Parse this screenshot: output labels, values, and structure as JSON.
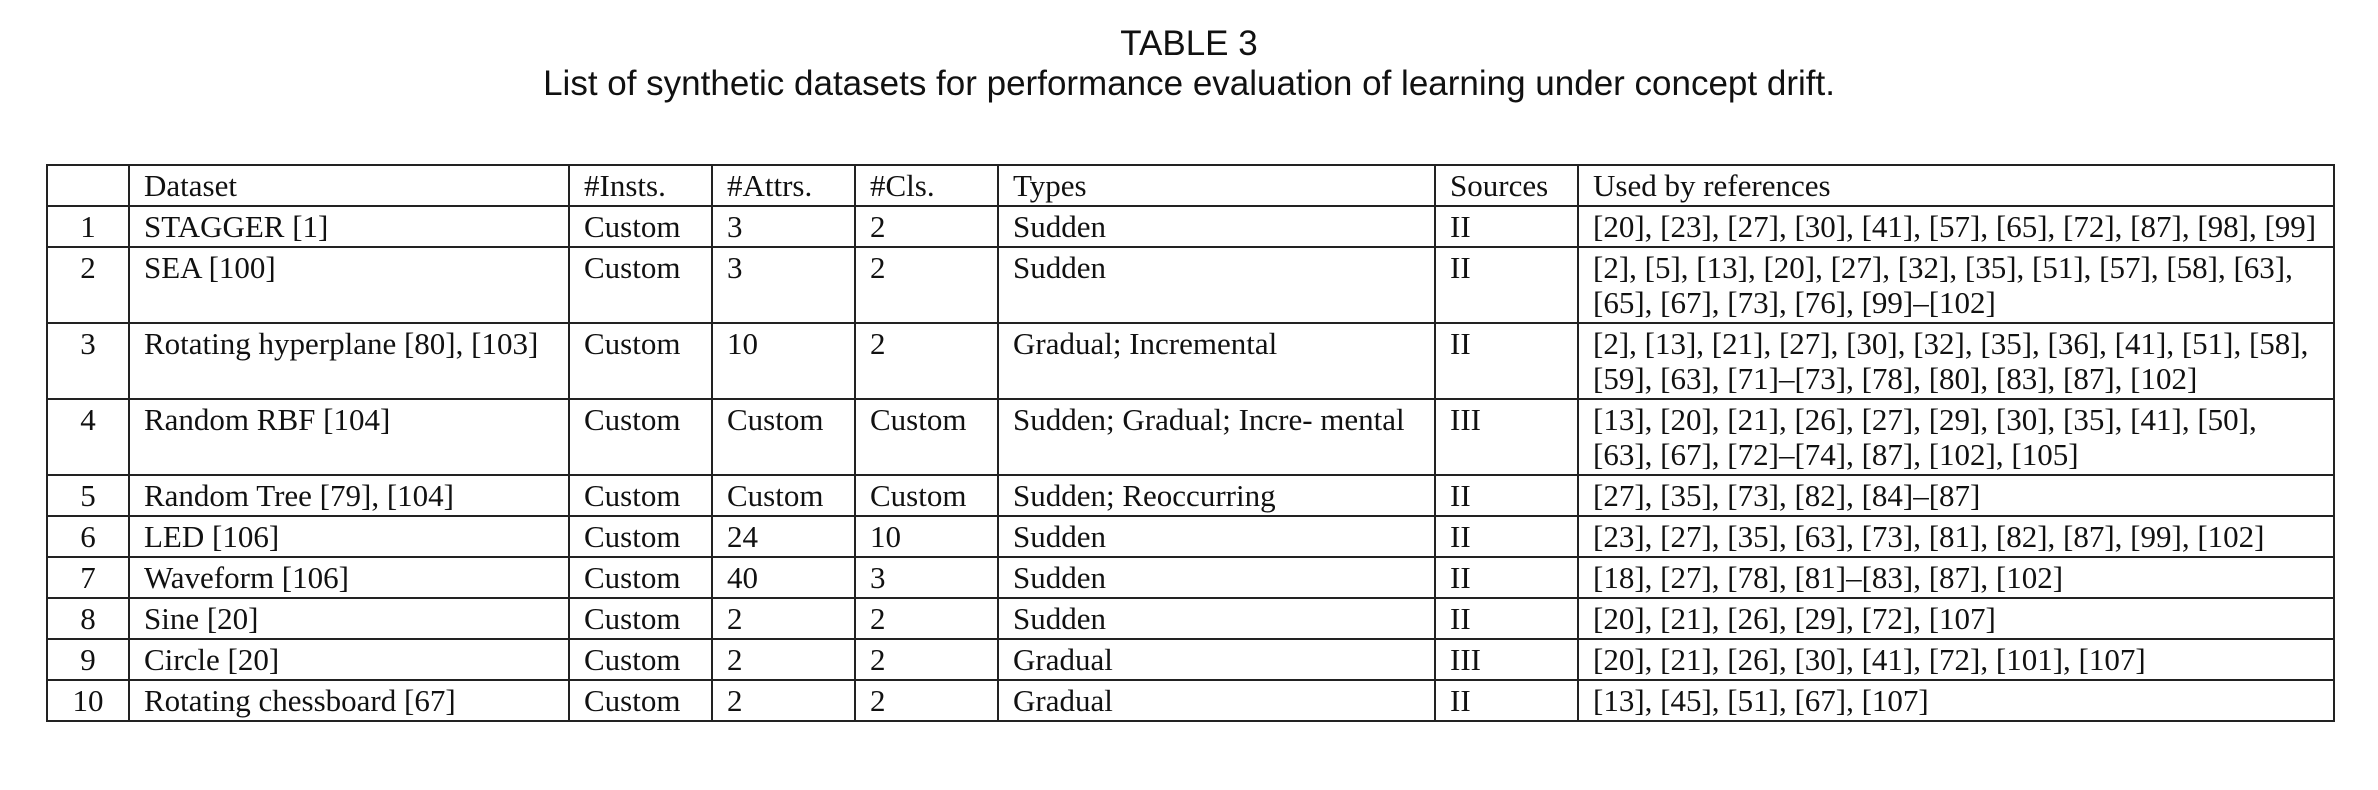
{
  "caption": {
    "label": "TABLE 3",
    "text": "List of synthetic datasets for performance evaluation of learning under concept drift."
  },
  "table": {
    "columns": [
      "",
      "Dataset",
      "#Insts.",
      "#Attrs.",
      "#Cls.",
      "Types",
      "Sources",
      "Used by references"
    ],
    "rows": [
      {
        "num": "1",
        "dataset": "STAGGER [1]",
        "insts": "Custom",
        "attrs": "3",
        "cls": "2",
        "types": "Sudden",
        "sources": "II",
        "refs": "[20], [23], [27], [30], [41], [57], [65], [72], [87], [98], [99]"
      },
      {
        "num": "2",
        "dataset": "SEA [100]",
        "insts": "Custom",
        "attrs": "3",
        "cls": "2",
        "types": "Sudden",
        "sources": "II",
        "refs": "[2], [5], [13], [20], [27], [32], [35], [51], [57], [58], [63], [65], [67], [73], [76], [99]–[102]"
      },
      {
        "num": "3",
        "dataset": "Rotating hyperplane [80], [103]",
        "insts": "Custom",
        "attrs": "10",
        "cls": "2",
        "types": "Gradual; Incremental",
        "sources": "II",
        "refs": "[2], [13], [21], [27], [30], [32], [35], [36], [41], [51], [58], [59], [63], [71]–[73], [78], [80], [83], [87], [102]"
      },
      {
        "num": "4",
        "dataset": "Random RBF [104]",
        "insts": "Custom",
        "attrs": "Custom",
        "cls": "Custom",
        "types": "Sudden; Gradual; Incre- mental",
        "sources": "III",
        "refs": "[13], [20], [21], [26], [27], [29], [30], [35], [41], [50], [63], [67], [72]–[74], [87], [102], [105]"
      },
      {
        "num": "5",
        "dataset": "Random Tree [79], [104]",
        "insts": "Custom",
        "attrs": "Custom",
        "cls": "Custom",
        "types": "Sudden; Reoccurring",
        "sources": "II",
        "refs": "[27], [35], [73], [82], [84]–[87]"
      },
      {
        "num": "6",
        "dataset": "LED [106]",
        "insts": "Custom",
        "attrs": "24",
        "cls": "10",
        "types": "Sudden",
        "sources": "II",
        "refs": "[23], [27], [35], [63], [73], [81], [82], [87], [99], [102]"
      },
      {
        "num": "7",
        "dataset": "Waveform [106]",
        "insts": "Custom",
        "attrs": "40",
        "cls": "3",
        "types": "Sudden",
        "sources": "II",
        "refs": "[18], [27], [78], [81]–[83], [87], [102]"
      },
      {
        "num": "8",
        "dataset": "Sine [20]",
        "insts": "Custom",
        "attrs": "2",
        "cls": "2",
        "types": "Sudden",
        "sources": "II",
        "refs": "[20], [21], [26], [29], [72], [107]"
      },
      {
        "num": "9",
        "dataset": "Circle [20]",
        "insts": "Custom",
        "attrs": "2",
        "cls": "2",
        "types": "Gradual",
        "sources": "III",
        "refs": "[20], [21], [26], [30], [41], [72], [101], [107]"
      },
      {
        "num": "10",
        "dataset": "Rotating chessboard [67]",
        "insts": "Custom",
        "attrs": "2",
        "cls": "2",
        "types": "Gradual",
        "sources": "II",
        "refs": "[13], [45], [51], [67], [107]"
      }
    ]
  }
}
